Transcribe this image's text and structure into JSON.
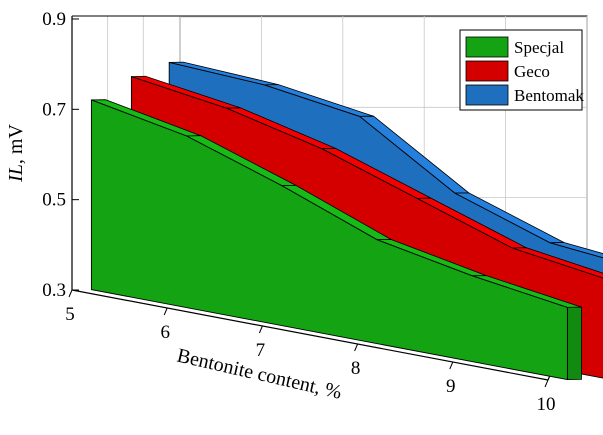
{
  "chart_data": {
    "type": "area",
    "view": "3d-ribbon",
    "x": [
      5,
      6,
      7,
      8,
      9,
      10
    ],
    "xlabel": "Bentonite content, %",
    "ylabel": "IL, mV",
    "ylabel_italic_part": "IL",
    "ylabel_rest": ", mV",
    "xlim": [
      5,
      10
    ],
    "ylim": [
      0.3,
      0.9
    ],
    "x_tick_labels": [
      "5",
      "6",
      "7",
      "8",
      "9",
      "10"
    ],
    "y_tick_labels": [
      "0.3",
      "0.5",
      "0.7",
      "0.9"
    ],
    "y_ticks": [
      0.3,
      0.5,
      0.7,
      0.9
    ],
    "grid": true,
    "legend_position": "top-right",
    "series": [
      {
        "name": "Bentomak",
        "color": "#1f6fbf",
        "values": [
          0.8,
          0.79,
          0.76,
          0.63,
          0.56,
          0.54
        ]
      },
      {
        "name": "Geco",
        "color": "#d40000",
        "values": [
          0.77,
          0.74,
          0.69,
          0.62,
          0.55,
          0.52
        ]
      },
      {
        "name": "Specjal",
        "color": "#13a313",
        "values": [
          0.72,
          0.68,
          0.61,
          0.53,
          0.49,
          0.46
        ]
      }
    ]
  }
}
